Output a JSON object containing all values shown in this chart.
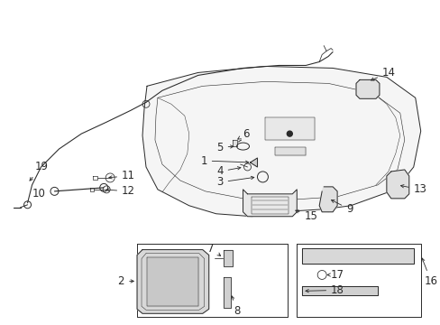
{
  "bg_color": "#ffffff",
  "lc": "#2a2a2a",
  "lw": 0.7,
  "fs": 8.5,
  "fig_w": 4.89,
  "fig_h": 3.6,
  "dpi": 100
}
